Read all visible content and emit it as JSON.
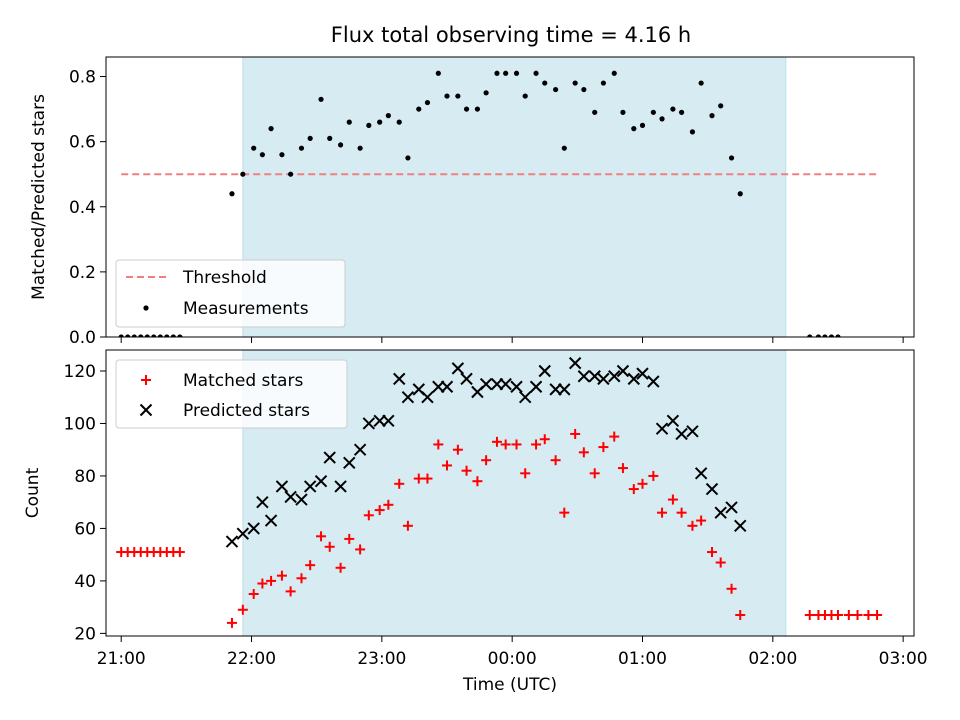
{
  "figure": {
    "title": "Flux total observing time = 4.16 h"
  },
  "chart_data": [
    {
      "type": "scatter",
      "ylabel": "Matched/Predicted stars",
      "xlabel": "",
      "xlim": [
        "20:53",
        "03:05"
      ],
      "ylim": [
        0,
        0.86
      ],
      "yticks": [
        0.0,
        0.2,
        0.4,
        0.6,
        0.8
      ],
      "ytick_labels": [
        "0.0",
        "0.2",
        "0.4",
        "0.6",
        "0.8"
      ],
      "xtick_labels_shown": false,
      "shaded_region": {
        "start": "21:56",
        "end": "02:06",
        "color": "#add8e6"
      },
      "legend_position": "lower left",
      "threshold": {
        "name": "Threshold",
        "value": 0.5,
        "x_start": "21:00",
        "x_end": "02:48",
        "color": "#f08080",
        "style": "dashed"
      },
      "series": [
        {
          "name": "Measurements",
          "color": "#000000",
          "marker": "dot",
          "points": [
            [
              "21:00",
              0
            ],
            [
              "21:03",
              0
            ],
            [
              "21:06",
              0
            ],
            [
              "21:09",
              0
            ],
            [
              "21:12",
              0
            ],
            [
              "21:15",
              0
            ],
            [
              "21:18",
              0
            ],
            [
              "21:21",
              0
            ],
            [
              "21:24",
              0
            ],
            [
              "21:27",
              0
            ],
            [
              "21:51",
              0.44
            ],
            [
              "21:56",
              0.5
            ],
            [
              "22:01",
              0.58
            ],
            [
              "22:05",
              0.56
            ],
            [
              "22:09",
              0.64
            ],
            [
              "22:14",
              0.56
            ],
            [
              "22:18",
              0.5
            ],
            [
              "22:23",
              0.58
            ],
            [
              "22:27",
              0.61
            ],
            [
              "22:32",
              0.73
            ],
            [
              "22:36",
              0.61
            ],
            [
              "22:41",
              0.59
            ],
            [
              "22:45",
              0.66
            ],
            [
              "22:50",
              0.58
            ],
            [
              "22:54",
              0.65
            ],
            [
              "22:59",
              0.66
            ],
            [
              "23:03",
              0.68
            ],
            [
              "23:08",
              0.66
            ],
            [
              "23:12",
              0.55
            ],
            [
              "23:17",
              0.7
            ],
            [
              "23:21",
              0.72
            ],
            [
              "23:26",
              0.81
            ],
            [
              "23:30",
              0.74
            ],
            [
              "23:35",
              0.74
            ],
            [
              "23:39",
              0.7
            ],
            [
              "23:44",
              0.7
            ],
            [
              "23:48",
              0.75
            ],
            [
              "23:53",
              0.81
            ],
            [
              "23:57",
              0.81
            ],
            [
              "00:02",
              0.81
            ],
            [
              "00:06",
              0.74
            ],
            [
              "00:11",
              0.81
            ],
            [
              "00:15",
              0.78
            ],
            [
              "00:20",
              0.76
            ],
            [
              "00:24",
              0.58
            ],
            [
              "00:29",
              0.78
            ],
            [
              "00:33",
              0.76
            ],
            [
              "00:38",
              0.69
            ],
            [
              "00:42",
              0.78
            ],
            [
              "00:47",
              0.81
            ],
            [
              "00:51",
              0.69
            ],
            [
              "00:56",
              0.64
            ],
            [
              "01:00",
              0.65
            ],
            [
              "01:05",
              0.69
            ],
            [
              "01:09",
              0.67
            ],
            [
              "01:14",
              0.7
            ],
            [
              "01:18",
              0.69
            ],
            [
              "01:23",
              0.63
            ],
            [
              "01:27",
              0.78
            ],
            [
              "01:32",
              0.68
            ],
            [
              "01:36",
              0.71
            ],
            [
              "01:41",
              0.55
            ],
            [
              "01:45",
              0.44
            ],
            [
              "02:17",
              0
            ],
            [
              "02:21",
              0
            ],
            [
              "02:24",
              0
            ],
            [
              "02:27",
              0
            ],
            [
              "02:30",
              0
            ]
          ]
        }
      ]
    },
    {
      "type": "scatter",
      "ylabel": "Count",
      "xlabel": "Time (UTC)",
      "xlim": [
        "20:53",
        "03:05"
      ],
      "ylim": [
        19,
        128
      ],
      "yticks": [
        20,
        40,
        60,
        80,
        100,
        120
      ],
      "ytick_labels": [
        "20",
        "40",
        "60",
        "80",
        "100",
        "120"
      ],
      "xticks": [
        "21:00",
        "22:00",
        "23:00",
        "00:00",
        "01:00",
        "02:00",
        "03:00"
      ],
      "shaded_region": {
        "start": "21:56",
        "end": "02:06",
        "color": "#add8e6"
      },
      "legend_position": "upper left",
      "series": [
        {
          "name": "Matched stars",
          "color": "#ff0000",
          "marker": "plus",
          "points": [
            [
              "21:00",
              51
            ],
            [
              "21:03",
              51
            ],
            [
              "21:06",
              51
            ],
            [
              "21:09",
              51
            ],
            [
              "21:12",
              51
            ],
            [
              "21:15",
              51
            ],
            [
              "21:18",
              51
            ],
            [
              "21:21",
              51
            ],
            [
              "21:24",
              51
            ],
            [
              "21:27",
              51
            ],
            [
              "21:51",
              24
            ],
            [
              "21:56",
              29
            ],
            [
              "22:01",
              35
            ],
            [
              "22:05",
              39
            ],
            [
              "22:09",
              40
            ],
            [
              "22:14",
              42
            ],
            [
              "22:18",
              36
            ],
            [
              "22:23",
              41
            ],
            [
              "22:27",
              46
            ],
            [
              "22:32",
              57
            ],
            [
              "22:36",
              53
            ],
            [
              "22:41",
              45
            ],
            [
              "22:45",
              56
            ],
            [
              "22:50",
              52
            ],
            [
              "22:54",
              65
            ],
            [
              "22:59",
              67
            ],
            [
              "23:03",
              69
            ],
            [
              "23:08",
              77
            ],
            [
              "23:12",
              61
            ],
            [
              "23:17",
              79
            ],
            [
              "23:21",
              79
            ],
            [
              "23:26",
              92
            ],
            [
              "23:30",
              84
            ],
            [
              "23:35",
              90
            ],
            [
              "23:39",
              82
            ],
            [
              "23:44",
              78
            ],
            [
              "23:48",
              86
            ],
            [
              "23:53",
              93
            ],
            [
              "23:57",
              92
            ],
            [
              "00:02",
              92
            ],
            [
              "00:06",
              81
            ],
            [
              "00:11",
              92
            ],
            [
              "00:15",
              94
            ],
            [
              "00:20",
              86
            ],
            [
              "00:24",
              66
            ],
            [
              "00:29",
              96
            ],
            [
              "00:33",
              89
            ],
            [
              "00:38",
              81
            ],
            [
              "00:42",
              91
            ],
            [
              "00:47",
              95
            ],
            [
              "00:51",
              83
            ],
            [
              "00:56",
              75
            ],
            [
              "01:00",
              77
            ],
            [
              "01:05",
              80
            ],
            [
              "01:09",
              66
            ],
            [
              "01:14",
              71
            ],
            [
              "01:18",
              66
            ],
            [
              "01:23",
              61
            ],
            [
              "01:27",
              63
            ],
            [
              "01:32",
              51
            ],
            [
              "01:36",
              47
            ],
            [
              "01:41",
              37
            ],
            [
              "01:45",
              27
            ],
            [
              "02:17",
              27
            ],
            [
              "02:21",
              27
            ],
            [
              "02:24",
              27
            ],
            [
              "02:27",
              27
            ],
            [
              "02:30",
              27
            ],
            [
              "02:35",
              27
            ],
            [
              "02:39",
              27
            ],
            [
              "02:44",
              27
            ],
            [
              "02:48",
              27
            ]
          ]
        },
        {
          "name": "Predicted stars",
          "color": "#000000",
          "marker": "x",
          "points": [
            [
              "21:51",
              55
            ],
            [
              "21:56",
              58
            ],
            [
              "22:01",
              60
            ],
            [
              "22:05",
              70
            ],
            [
              "22:09",
              63
            ],
            [
              "22:14",
              76
            ],
            [
              "22:18",
              72
            ],
            [
              "22:23",
              71
            ],
            [
              "22:27",
              76
            ],
            [
              "22:32",
              78
            ],
            [
              "22:36",
              87
            ],
            [
              "22:41",
              76
            ],
            [
              "22:45",
              85
            ],
            [
              "22:50",
              90
            ],
            [
              "22:54",
              100
            ],
            [
              "22:59",
              101
            ],
            [
              "23:03",
              101
            ],
            [
              "23:08",
              117
            ],
            [
              "23:12",
              110
            ],
            [
              "23:17",
              113
            ],
            [
              "23:21",
              110
            ],
            [
              "23:26",
              114
            ],
            [
              "23:30",
              114
            ],
            [
              "23:35",
              121
            ],
            [
              "23:39",
              117
            ],
            [
              "23:44",
              112
            ],
            [
              "23:48",
              115
            ],
            [
              "23:53",
              115
            ],
            [
              "23:57",
              115
            ],
            [
              "00:02",
              114
            ],
            [
              "00:06",
              110
            ],
            [
              "00:11",
              114
            ],
            [
              "00:15",
              120
            ],
            [
              "00:20",
              113
            ],
            [
              "00:24",
              113
            ],
            [
              "00:29",
              123
            ],
            [
              "00:33",
              118
            ],
            [
              "00:38",
              118
            ],
            [
              "00:42",
              117
            ],
            [
              "00:47",
              118
            ],
            [
              "00:51",
              120
            ],
            [
              "00:56",
              117
            ],
            [
              "01:00",
              119
            ],
            [
              "01:05",
              116
            ],
            [
              "01:09",
              98
            ],
            [
              "01:14",
              101
            ],
            [
              "01:18",
              96
            ],
            [
              "01:23",
              97
            ],
            [
              "01:27",
              81
            ],
            [
              "01:32",
              75
            ],
            [
              "01:36",
              66
            ],
            [
              "01:41",
              68
            ],
            [
              "01:45",
              61
            ]
          ]
        }
      ]
    }
  ]
}
